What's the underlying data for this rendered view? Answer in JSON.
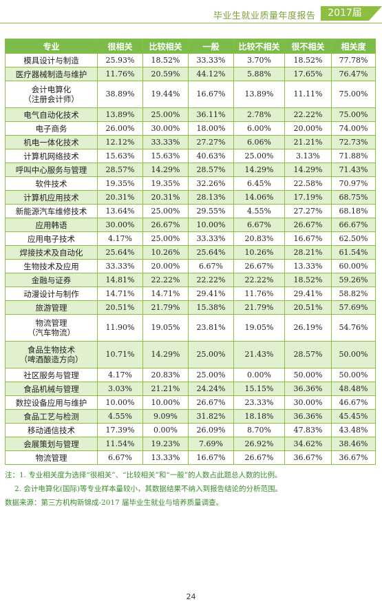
{
  "header": {
    "title": "毕业生就业质量年度报告",
    "year": "2017届"
  },
  "table": {
    "columns": [
      "专业",
      "很相关",
      "比较相关",
      "一般",
      "比较不相关",
      "很不相关",
      "相关度"
    ],
    "rows": [
      {
        "major": "模具设计与制造",
        "v": [
          "25.93%",
          "18.52%",
          "33.33%",
          "3.70%",
          "18.52%",
          "77.78%"
        ]
      },
      {
        "major": "医疗器械制造与维护",
        "v": [
          "11.76%",
          "20.59%",
          "44.12%",
          "5.88%",
          "17.65%",
          "76.47%"
        ]
      },
      {
        "major": "会计电算化",
        "major2": "（注册会计师）",
        "v": [
          "38.89%",
          "19.44%",
          "16.67%",
          "13.89%",
          "11.11%",
          "75.00%"
        ]
      },
      {
        "major": "电气自动化技术",
        "v": [
          "13.89%",
          "25.00%",
          "36.11%",
          "2.78%",
          "22.22%",
          "75.00%"
        ]
      },
      {
        "major": "电子商务",
        "v": [
          "26.00%",
          "30.00%",
          "18.00%",
          "6.00%",
          "20.00%",
          "74.00%"
        ]
      },
      {
        "major": "机电一体化技术",
        "v": [
          "12.12%",
          "33.33%",
          "27.27%",
          "6.06%",
          "21.21%",
          "72.73%"
        ]
      },
      {
        "major": "计算机网络技术",
        "v": [
          "15.63%",
          "15.63%",
          "40.63%",
          "25.00%",
          "3.13%",
          "71.88%"
        ]
      },
      {
        "major": "呼叫中心服务与管理",
        "v": [
          "28.57%",
          "14.29%",
          "28.57%",
          "14.29%",
          "14.29%",
          "71.43%"
        ]
      },
      {
        "major": "软件技术",
        "v": [
          "19.35%",
          "19.35%",
          "32.26%",
          "6.45%",
          "22.58%",
          "70.97%"
        ]
      },
      {
        "major": "计算机应用技术",
        "v": [
          "20.31%",
          "20.31%",
          "28.13%",
          "14.06%",
          "17.19%",
          "68.75%"
        ]
      },
      {
        "major": "新能源汽车维修技术",
        "v": [
          "13.64%",
          "25.00%",
          "29.55%",
          "4.55%",
          "27.27%",
          "68.18%"
        ]
      },
      {
        "major": "应用韩语",
        "v": [
          "30.00%",
          "26.67%",
          "10.00%",
          "6.67%",
          "26.67%",
          "66.67%"
        ]
      },
      {
        "major": "应用电子技术",
        "v": [
          "4.17%",
          "25.00%",
          "33.33%",
          "20.83%",
          "16.67%",
          "62.50%"
        ]
      },
      {
        "major": "焊接技术及自动化",
        "v": [
          "25.64%",
          "10.26%",
          "25.64%",
          "10.26%",
          "28.21%",
          "61.54%"
        ]
      },
      {
        "major": "生物技术及应用",
        "v": [
          "33.33%",
          "20.00%",
          "6.67%",
          "26.67%",
          "13.33%",
          "60.00%"
        ]
      },
      {
        "major": "金融与证券",
        "v": [
          "14.81%",
          "22.22%",
          "22.22%",
          "22.22%",
          "18.52%",
          "59.26%"
        ]
      },
      {
        "major": "动漫设计与制作",
        "v": [
          "14.71%",
          "14.71%",
          "29.41%",
          "11.76%",
          "29.41%",
          "58.82%"
        ]
      },
      {
        "major": "旅游管理",
        "v": [
          "20.51%",
          "21.79%",
          "15.38%",
          "21.79%",
          "20.51%",
          "57.69%"
        ]
      },
      {
        "major": "物流管理",
        "major2": "（汽车物流）",
        "v": [
          "11.90%",
          "19.05%",
          "23.81%",
          "19.05%",
          "26.19%",
          "54.76%"
        ]
      },
      {
        "major": "食品生物技术",
        "major2": "（啤酒酿造方向）",
        "v": [
          "10.71%",
          "14.29%",
          "25.00%",
          "21.43%",
          "28.57%",
          "50.00%"
        ]
      },
      {
        "major": "社区服务与管理",
        "v": [
          "4.17%",
          "20.83%",
          "25.00%",
          "0.00%",
          "50.00%",
          "50.00%"
        ]
      },
      {
        "major": "食品机械与管理",
        "v": [
          "3.03%",
          "21.21%",
          "24.24%",
          "15.15%",
          "36.36%",
          "48.48%"
        ]
      },
      {
        "major": "数控设备应用与维护",
        "v": [
          "10.00%",
          "10.00%",
          "26.67%",
          "23.33%",
          "30.00%",
          "46.67%"
        ]
      },
      {
        "major": "食品工艺与检测",
        "v": [
          "4.55%",
          "9.09%",
          "31.82%",
          "18.18%",
          "36.36%",
          "45.45%"
        ]
      },
      {
        "major": "移动通信技术",
        "v": [
          "17.39%",
          "0.00%",
          "26.09%",
          "8.70%",
          "47.83%",
          "43.48%"
        ]
      },
      {
        "major": "会展策划与管理",
        "v": [
          "11.54%",
          "19.23%",
          "7.69%",
          "26.92%",
          "34.62%",
          "38.46%"
        ]
      },
      {
        "major": "物流管理",
        "v": [
          "6.67%",
          "13.33%",
          "16.67%",
          "26.67%",
          "36.67%",
          "36.67%"
        ]
      }
    ]
  },
  "notes": {
    "note1": "注：1. 专业相关度为选择“很相关”、“比较相关”和“一般”的人数占此题总人数的比例。",
    "note2": "2. 会计电算化(国际)等专业样本量较小，其数据结果不纳入到报告结论的分析范围。",
    "source": "数据来源：第三方机构新锦成-2017 届毕业生就业与培养质量调查。"
  },
  "page_number": "24",
  "colors": {
    "accent": "#8cbf3f",
    "header_fill": "#7cbc4b",
    "row_alt": "#e1f0cf",
    "note_text": "#3a8a2c"
  }
}
